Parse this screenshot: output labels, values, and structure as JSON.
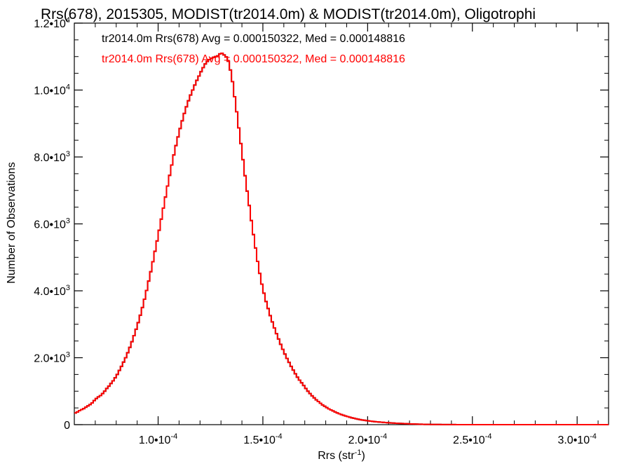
{
  "chart_data": {
    "type": "histogram",
    "title": "Rrs(678), 2015305, MODIST(tr2014.0m) & MODIST(tr2014.0m), Oligotrophi",
    "xlabel": "Rrs (str",
    "xlabel_sup": "-1",
    "xlabel_end": ")",
    "ylabel": "Number of Observations",
    "xlim": [
      6e-05,
      0.000315
    ],
    "ylim": [
      0,
      12000
    ],
    "grid": false,
    "x_ticks": [
      {
        "value": 0.0001,
        "mant": "1.0•10",
        "exp": "-4"
      },
      {
        "value": 0.00015,
        "mant": "1.5•10",
        "exp": "-4"
      },
      {
        "value": 0.0002,
        "mant": "2.0•10",
        "exp": "-4"
      },
      {
        "value": 0.00025,
        "mant": "2.5•10",
        "exp": "-4"
      },
      {
        "value": 0.0003,
        "mant": "3.0•10",
        "exp": "-4"
      }
    ],
    "y_ticks": [
      {
        "value": 0,
        "mant": "0",
        "exp": ""
      },
      {
        "value": 2000,
        "mant": "2.0•10",
        "exp": "3"
      },
      {
        "value": 4000,
        "mant": "4.0•10",
        "exp": "3"
      },
      {
        "value": 6000,
        "mant": "6.0•10",
        "exp": "3"
      },
      {
        "value": 8000,
        "mant": "8.0•10",
        "exp": "3"
      },
      {
        "value": 10000,
        "mant": "1.0•10",
        "exp": "4"
      },
      {
        "value": 12000,
        "mant": "1.2•10",
        "exp": "4"
      }
    ],
    "annotations": [
      {
        "text": "tr2014.0m Rrs(678) Avg = 0.000150322, Med = 0.000148816",
        "color": "#000000"
      },
      {
        "text": "tr2014.0m Rrs(678) Avg = 0.000150322, Med = 0.000148816",
        "color": "#ff0000"
      }
    ],
    "series": [
      {
        "color": "#000000",
        "bin_width": 1e-06,
        "x_start": 6e-05,
        "values": [
          350,
          380,
          420,
          450,
          480,
          520,
          560,
          600,
          650,
          720,
          780,
          830,
          870,
          930,
          1000,
          1080,
          1150,
          1230,
          1310,
          1400,
          1500,
          1620,
          1740,
          1870,
          2000,
          2150,
          2310,
          2480,
          2660,
          2850,
          3050,
          3270,
          3500,
          3750,
          4010,
          4290,
          4570,
          4870,
          5180,
          5490,
          5810,
          6140,
          6470,
          6800,
          7130,
          7450,
          7760,
          8060,
          8340,
          8600,
          8850,
          9080,
          9300,
          9500,
          9680,
          9850,
          10000,
          10150,
          10290,
          10420,
          10550,
          10670,
          10780,
          10860,
          10910,
          10950,
          10980,
          11000,
          11020,
          11080,
          11100,
          11050,
          10990,
          10860,
          10600,
          10250,
          9800,
          9350,
          8870,
          8400,
          7920,
          7440,
          6980,
          6550,
          6100,
          5680,
          5280,
          4880,
          4520,
          4200,
          3930,
          3680,
          3470,
          3260,
          3070,
          2890,
          2720,
          2560,
          2400,
          2250,
          2110,
          1980,
          1860,
          1740,
          1630,
          1520,
          1420,
          1330,
          1250,
          1170,
          1080,
          1000,
          930,
          860,
          800,
          740,
          690,
          640,
          590,
          550,
          510,
          470,
          440,
          410,
          380,
          350,
          325,
          300,
          280,
          260,
          240,
          222,
          205,
          190,
          175,
          162,
          150,
          140,
          130,
          120,
          112,
          104,
          97,
          90,
          84,
          78,
          72,
          67,
          62,
          58,
          54,
          50,
          46,
          43,
          40,
          37,
          34,
          31,
          28,
          25,
          22,
          20,
          18,
          16,
          14,
          12,
          10,
          9,
          8,
          7,
          6,
          5,
          5,
          4,
          4,
          3,
          3,
          3,
          2,
          2,
          2,
          2,
          1,
          1,
          1,
          1,
          1,
          1,
          1,
          1,
          1,
          1,
          1,
          1,
          1,
          1,
          1,
          1,
          1,
          1,
          1,
          1,
          1,
          1,
          1,
          1,
          1,
          1,
          1,
          1,
          1,
          1,
          1,
          1,
          1,
          1,
          1,
          1,
          1,
          1,
          1,
          1,
          1,
          1,
          1,
          1,
          1,
          1,
          1,
          1,
          1,
          1,
          1,
          1,
          1,
          1,
          1,
          1,
          1,
          1,
          1,
          1,
          1,
          1,
          1,
          1,
          1,
          1,
          1,
          1,
          1,
          1,
          1,
          1,
          1,
          1,
          1,
          1,
          1,
          1,
          1,
          1,
          1,
          1
        ]
      },
      {
        "color": "#ff0000",
        "same_as_first": true
      }
    ]
  }
}
